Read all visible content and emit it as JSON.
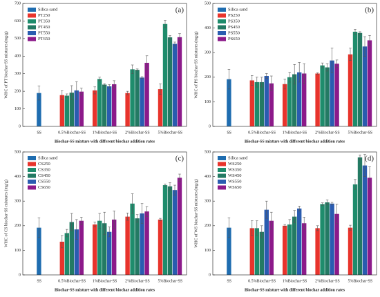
{
  "chart_data": [
    {
      "type": "bar",
      "panel_label": "(a)",
      "y_label": "WHC of PT biochar-SS mixtures (mg/g)",
      "x_label": "Biochar-SS mixture with different biochar addition rates",
      "categories": [
        "SS",
        "0.5%Biochar-SS",
        "1%Biochar-SS",
        "2%Biochar-SS",
        "5%Biochar-SS"
      ],
      "ylim": [
        0,
        700
      ],
      "yticks": [
        0,
        100,
        200,
        300,
        400,
        500,
        600,
        700
      ],
      "legend": "upper left",
      "series": [
        {
          "name": "Silica sand",
          "color": "#1f6db0",
          "values": [
            190,
            null,
            null,
            null,
            null
          ],
          "errors": [
            40,
            null,
            null,
            null,
            null
          ]
        },
        {
          "name": "PT250",
          "color": "#e8342c",
          "values": [
            null,
            178,
            205,
            190,
            212
          ],
          "errors": [
            null,
            25,
            20,
            10,
            30
          ]
        },
        {
          "name": "PT350",
          "color": "#1e8c6c",
          "values": [
            null,
            175,
            270,
            325,
            583
          ],
          "errors": [
            null,
            10,
            10,
            25,
            20
          ]
        },
        {
          "name": "PT450",
          "color": "#237a63",
          "values": [
            null,
            192,
            238,
            322,
            507
          ],
          "errors": [
            null,
            40,
            5,
            5,
            10
          ]
        },
        {
          "name": "PT550",
          "color": "#2a5cb0",
          "values": [
            null,
            205,
            228,
            278,
            470
          ],
          "errors": [
            null,
            50,
            10,
            5,
            10
          ]
        },
        {
          "name": "PT650",
          "color": "#8c1a8a",
          "values": [
            null,
            198,
            240,
            362,
            508
          ],
          "errors": [
            null,
            20,
            20,
            40,
            20
          ]
        }
      ]
    },
    {
      "type": "bar",
      "panel_label": "(b)",
      "y_label": "WHC of PS biochar-SS mixtures (mg/g)",
      "x_label": "Biochar-SS mixture with different biochar addition rates",
      "categories": [
        "SS",
        "0.5%Biochar-SS",
        "1%Biochar-SS",
        "2%Biochar-SS",
        "5%Biochar-SS"
      ],
      "ylim": [
        0,
        500
      ],
      "yticks": [
        0,
        100,
        200,
        300,
        400,
        500
      ],
      "legend": "upper left",
      "series": [
        {
          "name": "Silica sand",
          "color": "#1f6db0",
          "values": [
            192,
            null,
            null,
            null,
            null
          ],
          "errors": [
            40,
            null,
            null,
            null,
            null
          ]
        },
        {
          "name": "PS250",
          "color": "#e8342c",
          "values": [
            null,
            187,
            172,
            215,
            293
          ],
          "errors": [
            null,
            20,
            20,
            3,
            25
          ]
        },
        {
          "name": "PS350",
          "color": "#1e8c6c",
          "values": [
            null,
            180,
            200,
            248,
            385
          ],
          "errors": [
            null,
            20,
            20,
            10,
            10
          ]
        },
        {
          "name": "PS450",
          "color": "#237a63",
          "values": [
            null,
            180,
            212,
            240,
            380
          ],
          "errors": [
            null,
            20,
            40,
            15,
            5
          ]
        },
        {
          "name": "PS550",
          "color": "#2a5cb0",
          "values": [
            null,
            205,
            220,
            268,
            325
          ],
          "errors": [
            null,
            10,
            40,
            50,
            40
          ]
        },
        {
          "name": "PS650",
          "color": "#8c1a8a",
          "values": [
            null,
            175,
            215,
            255,
            350
          ],
          "errors": [
            null,
            30,
            40,
            15,
            20
          ]
        }
      ]
    },
    {
      "type": "bar",
      "panel_label": "(c)",
      "y_label": "WHC of CS biochar-SS mixtures (mg/g)",
      "x_label": "Biochar-SS mixture with different biochar addition rates",
      "categories": [
        "SS",
        "0.5%Biochar-SS",
        "1%Biochar-SS",
        "2%Biochar-SS",
        "5%Biochar-SS"
      ],
      "ylim": [
        0,
        500
      ],
      "yticks": [
        0,
        100,
        200,
        300,
        400,
        500
      ],
      "legend": "upper left",
      "series": [
        {
          "name": "Silica sand",
          "color": "#1f6db0",
          "values": [
            192,
            null,
            null,
            null,
            null
          ],
          "errors": [
            40,
            null,
            null,
            null,
            null
          ]
        },
        {
          "name": "CS250",
          "color": "#e8342c",
          "values": [
            null,
            135,
            205,
            237,
            225
          ],
          "errors": [
            null,
            25,
            10,
            15,
            5
          ]
        },
        {
          "name": "CS350",
          "color": "#1e8c6c",
          "values": [
            null,
            170,
            220,
            290,
            365
          ],
          "errors": [
            null,
            15,
            30,
            40,
            5
          ]
        },
        {
          "name": "CS450",
          "color": "#237a63",
          "values": [
            null,
            215,
            210,
            230,
            360
          ],
          "errors": [
            null,
            35,
            45,
            15,
            15
          ]
        },
        {
          "name": "CS550",
          "color": "#2a5cb0",
          "values": [
            null,
            185,
            175,
            250,
            345
          ],
          "errors": [
            null,
            40,
            20,
            40,
            20
          ]
        },
        {
          "name": "CS650",
          "color": "#8c1a8a",
          "values": [
            null,
            220,
            225,
            258,
            395
          ],
          "errors": [
            null,
            15,
            35,
            20,
            15
          ]
        }
      ]
    },
    {
      "type": "bar",
      "panel_label": "(d)",
      "y_label": "WHC of WS biochar-SS mixtures (mg/g)",
      "x_label": "Biochar-SS mixture with different biochar addition rates",
      "categories": [
        "SS",
        "0.5%Biochar-SS",
        "1%Biochar-SS",
        "2%Biochar-SS",
        "5%Biochar-SS"
      ],
      "ylim": [
        0,
        500
      ],
      "yticks": [
        0,
        100,
        200,
        300,
        400,
        500
      ],
      "legend": "upper left",
      "series": [
        {
          "name": "Silica sand",
          "color": "#1f6db0",
          "values": [
            192,
            null,
            null,
            null,
            null
          ],
          "errors": [
            40,
            null,
            null,
            null,
            null
          ]
        },
        {
          "name": "WS250",
          "color": "#e8342c",
          "values": [
            null,
            190,
            200,
            190,
            192
          ],
          "errors": [
            null,
            30,
            5,
            10,
            10
          ]
        },
        {
          "name": "WS350",
          "color": "#1e8c6c",
          "values": [
            null,
            190,
            205,
            288,
            368
          ],
          "errors": [
            null,
            30,
            20,
            5,
            20
          ]
        },
        {
          "name": "WS450",
          "color": "#237a63",
          "values": [
            null,
            175,
            237,
            295,
            478
          ],
          "errors": [
            null,
            25,
            25,
            10,
            10
          ]
        },
        {
          "name": "WS550",
          "color": "#2a5cb0",
          "values": [
            null,
            265,
            270,
            290,
            445
          ],
          "errors": [
            null,
            35,
            10,
            5,
            45
          ]
        },
        {
          "name": "WS650",
          "color": "#8c1a8a",
          "values": [
            null,
            220,
            210,
            248,
            395
          ],
          "errors": [
            null,
            35,
            25,
            40,
            45
          ]
        }
      ]
    }
  ]
}
